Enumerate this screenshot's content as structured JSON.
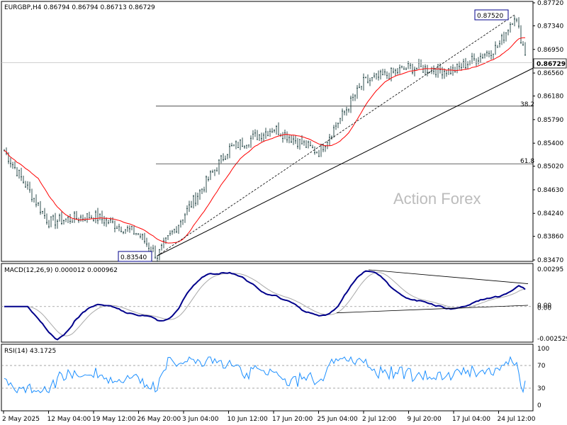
{
  "chart_data": [
    {
      "type": "candlestick",
      "title": "EURGBP,H4  0.86794 0.86794 0.86713 0.86729",
      "watermark": "Action Forex",
      "current_price_label": "0.86729",
      "current_price": 0.86729,
      "y_ticks": [
        "0.87720",
        "0.87340",
        "0.86950",
        "0.86560",
        "0.86180",
        "0.85790",
        "0.85400",
        "0.85020",
        "0.84630",
        "0.84240",
        "0.83860",
        "0.83470"
      ],
      "ylim": [
        0.8347,
        0.8772
      ],
      "x_ticks": [
        "2 May 2025",
        "12 May 04:00",
        "19 May 12:00",
        "26 May 20:00",
        "3 Jun 04:00",
        "10 Jun 12:00",
        "17 Jun 20:00",
        "25 Jun 04:00",
        "2 Jul 12:00",
        "9 Jul 20:00",
        "17 Jul 04:00",
        "24 Jul 12:00"
      ],
      "price_path": [
        {
          "x": "2 May 2025",
          "y": 0.853
        },
        {
          "x": "12 May 04:00",
          "y": 0.841
        },
        {
          "x": "19 May 12:00",
          "y": 0.842
        },
        {
          "x": "26 May 20:00",
          "y": 0.839
        },
        {
          "x": "3 Jun 04:00",
          "y": 0.842
        },
        {
          "x": "10 Jun 12:00",
          "y": 0.853
        },
        {
          "x": "17 Jun 20:00",
          "y": 0.8565
        },
        {
          "x": "25 Jun 04:00",
          "y": 0.8525
        },
        {
          "x": "2 Jul 12:00",
          "y": 0.864
        },
        {
          "x": "9 Jul 20:00",
          "y": 0.8665
        },
        {
          "x": "17 Jul 04:00",
          "y": 0.866
        },
        {
          "x": "24 Jul 12:00",
          "y": 0.87
        },
        {
          "x": "end",
          "y": 0.86729
        }
      ],
      "annotations": [
        {
          "label": "0.87520",
          "y": 0.8752,
          "kind": "swing-high"
        },
        {
          "label": "0.83540",
          "y": 0.8354,
          "kind": "swing-low"
        },
        {
          "label": "38.2",
          "y": 0.86013,
          "kind": "fibonacci"
        },
        {
          "label": "61.8",
          "y": 0.85059,
          "kind": "fibonacci"
        }
      ],
      "moving_average": {
        "color": "#ff0000"
      },
      "colors": {
        "price": "#2f4f4f",
        "trendline": "#000000"
      }
    },
    {
      "type": "line",
      "title": "MACD(12,26,9) 0.000012 0.000962",
      "y_ticks": [
        "0.00295",
        "0.00",
        "0.00",
        "-0.002529"
      ],
      "ylim": [
        -0.002529,
        0.00295
      ],
      "series": [
        {
          "name": "MACD",
          "color": "#00008b"
        },
        {
          "name": "Signal",
          "color": "#a9a9a9"
        }
      ]
    },
    {
      "type": "line",
      "title": "RSI(14) 43.1725",
      "y_ticks": [
        "100",
        "70",
        "30",
        "0"
      ],
      "ylim": [
        0,
        100
      ],
      "levels": [
        70,
        30
      ],
      "current": 43.1725,
      "series": [
        {
          "name": "RSI",
          "color": "#1e90ff"
        }
      ]
    }
  ]
}
